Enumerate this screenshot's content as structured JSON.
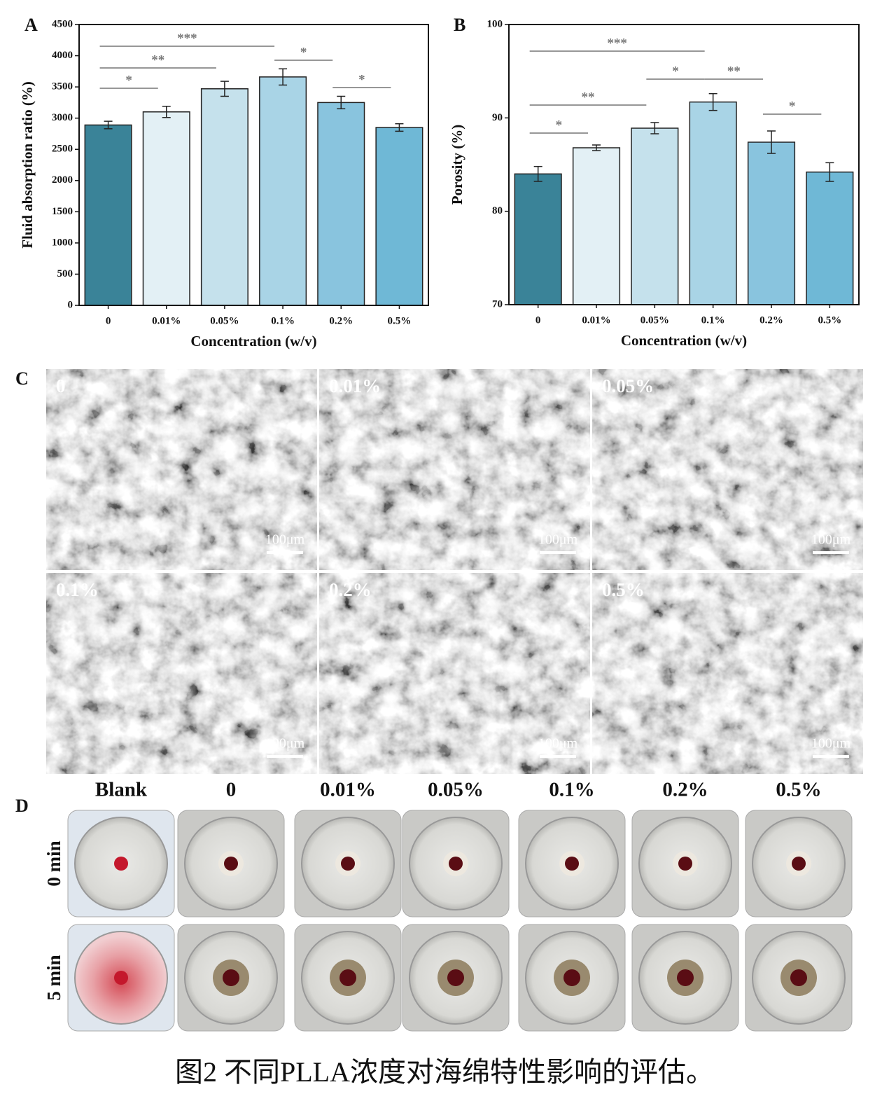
{
  "chart_data": [
    {
      "type": "bar",
      "panel_label": "A",
      "y_label": "Fluid absorption ratio (%)",
      "x_label": "Concentration (w/v)",
      "categories": [
        "0",
        "0.01%",
        "0.05%",
        "0.1%",
        "0.2%",
        "0.5%"
      ],
      "values": [
        2890,
        3100,
        3470,
        3660,
        3250,
        2850
      ],
      "errors": [
        60,
        90,
        120,
        130,
        100,
        60
      ],
      "colors": [
        "#3a8398",
        "#e3f0f5",
        "#c5e1ec",
        "#a9d4e6",
        "#89c4de",
        "#6fb8d6"
      ],
      "ylim": [
        0,
        4500
      ],
      "yticks": [
        0,
        500,
        1000,
        1500,
        2000,
        2500,
        3000,
        3500,
        4000,
        4500
      ],
      "significance": [
        {
          "groups": [
            "0",
            "0.01%"
          ],
          "label": "*"
        },
        {
          "groups": [
            "0",
            "0.05%"
          ],
          "label": "**"
        },
        {
          "groups": [
            "0",
            "0.1%"
          ],
          "label": "***"
        },
        {
          "groups": [
            "0.1%",
            "0.2%"
          ],
          "label": "*"
        },
        {
          "groups": [
            "0.2%",
            "0.5%"
          ],
          "label": "*"
        }
      ]
    },
    {
      "type": "bar",
      "panel_label": "B",
      "y_label": "Porosity (%)",
      "x_label": "Concentration (w/v)",
      "categories": [
        "0",
        "0.01%",
        "0.05%",
        "0.1%",
        "0.2%",
        "0.5%"
      ],
      "values": [
        84.0,
        86.8,
        88.9,
        91.7,
        87.4,
        84.2
      ],
      "errors": [
        0.8,
        0.3,
        0.6,
        0.9,
        1.2,
        1.0
      ],
      "colors": [
        "#3a8398",
        "#e3f0f5",
        "#c5e1ec",
        "#a9d4e6",
        "#89c4de",
        "#6fb8d6"
      ],
      "ylim": [
        70,
        100
      ],
      "yticks": [
        70,
        80,
        90,
        100
      ],
      "significance": [
        {
          "groups": [
            "0",
            "0.01%"
          ],
          "label": "*"
        },
        {
          "groups": [
            "0",
            "0.05%"
          ],
          "label": "**"
        },
        {
          "groups": [
            "0",
            "0.1%"
          ],
          "label": "***"
        },
        {
          "groups": [
            "0.05%",
            "0.1%"
          ],
          "label": "*"
        },
        {
          "groups": [
            "0.1%",
            "0.2%"
          ],
          "label": "**"
        },
        {
          "groups": [
            "0.2%",
            "0.5%"
          ],
          "label": "*"
        }
      ]
    }
  ],
  "panel_c": {
    "label": "C",
    "images": [
      {
        "label": "0",
        "scale": "100μm"
      },
      {
        "label": "0.01%",
        "scale": "100μm"
      },
      {
        "label": "0.05%",
        "scale": "100μm"
      },
      {
        "label": "0.1%",
        "scale": "100μm"
      },
      {
        "label": "0.2%",
        "scale": "100μm"
      },
      {
        "label": "0.5%",
        "scale": "100μm"
      }
    ]
  },
  "panel_d": {
    "label": "D",
    "columns": [
      "Blank",
      "0",
      "0.01%",
      "0.05%",
      "0.1%",
      "0.2%",
      "0.5%"
    ],
    "rows": [
      "0 min",
      "5 min"
    ]
  },
  "caption": "图2 不同PLLA浓度对海绵特性影响的评估。"
}
